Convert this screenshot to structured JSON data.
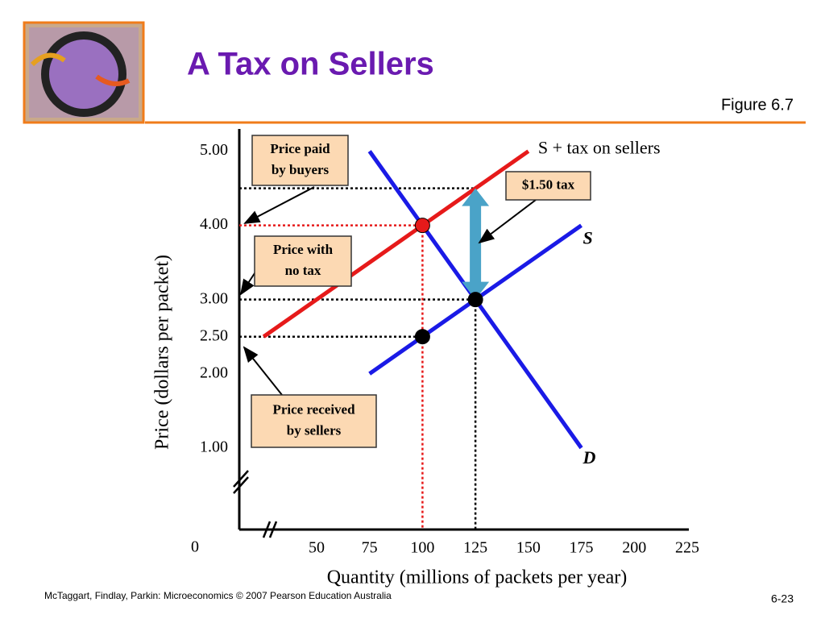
{
  "title": "A Tax on Sellers",
  "figure": "Figure 6.7",
  "footer": "McTaggart, Findlay, Parkin: Microeconomics © 2007 Pearson Education Australia",
  "page": "6-23",
  "chart_data": {
    "type": "line",
    "xlabel": "Quantity (millions of packets per year)",
    "ylabel": "Price (dollars per packet)",
    "origin_label": "0",
    "xlim": [
      13.5,
      225
    ],
    "ylim": [
      -0.1,
      5.3
    ],
    "xticks": [
      50,
      75,
      100,
      125,
      150,
      175,
      200,
      225
    ],
    "yticks": [
      {
        "value": 5,
        "label": "5.00"
      },
      {
        "value": 4,
        "label": "4.00"
      },
      {
        "value": 3,
        "label": "3.00"
      },
      {
        "value": 2.5,
        "label": "2.50"
      },
      {
        "value": 2,
        "label": "2.00"
      },
      {
        "value": 1,
        "label": "1.00"
      }
    ],
    "series": [
      {
        "name": "D",
        "color": "#1a1ae6",
        "x": [
          75,
          175
        ],
        "values": [
          5,
          1
        ]
      },
      {
        "name": "S",
        "color": "#1a1ae6",
        "x": [
          75,
          175
        ],
        "values": [
          2,
          4
        ]
      },
      {
        "name": "S + tax on sellers",
        "color": "#e61a1a",
        "x": [
          25,
          150
        ],
        "values": [
          2.5,
          5
        ]
      }
    ],
    "points": [
      {
        "x": 100,
        "y": 4,
        "color": "#e61a1a"
      },
      {
        "x": 125,
        "y": 3,
        "color": "#000000"
      },
      {
        "x": 100,
        "y": 2.5,
        "color": "#000000"
      }
    ],
    "guides": [
      {
        "x": 125,
        "y": 4.5,
        "color": "#000000"
      },
      {
        "x": 100,
        "y": 4,
        "color": "#e61a1a"
      },
      {
        "x": 125,
        "y": 3,
        "color": "#000000"
      },
      {
        "x": 100,
        "y": 2.5,
        "color": "#000000"
      }
    ],
    "annotations": [
      {
        "lines": [
          "Price paid",
          "by buyers"
        ]
      },
      {
        "lines": [
          "Price with",
          "no tax"
        ]
      },
      {
        "lines": [
          "Price received",
          "by sellers"
        ]
      },
      {
        "lines": [
          "$1.50 tax"
        ]
      }
    ]
  }
}
